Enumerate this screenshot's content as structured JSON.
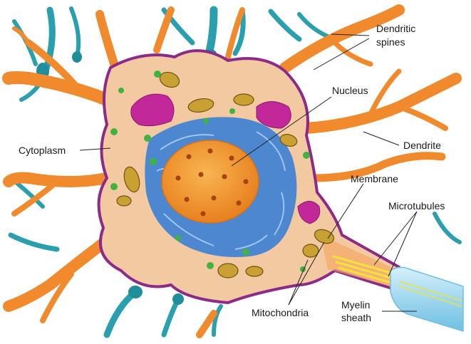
{
  "diagram": {
    "labels": {
      "dendritic_spines_1": "Dendritic",
      "dendritic_spines_2": "spines",
      "nucleus": "Nucleus",
      "cytoplasm": "Cytoplasm",
      "dendrite": "Dendrite",
      "membrane": "Membrane",
      "microtubules": "Microtubules",
      "myelin_1": "Myelin",
      "myelin_2": "sheath",
      "mitochondria": "Mitochondria"
    },
    "colors": {
      "dendrite_orange": "#f08a2c",
      "dendrite_teal": "#2a9fae",
      "cytoplasm": "#f2c9a0",
      "membrane": "#8c2a8a",
      "nucleus": "#f39a35",
      "er_blue": "#3a7fd4",
      "golgi": "#c2289a",
      "mitochondria": "#c9a032",
      "vesicle_green": "#3fb33f",
      "myelin": "#a9dcf2",
      "microtubule": "#f3e23b"
    }
  }
}
